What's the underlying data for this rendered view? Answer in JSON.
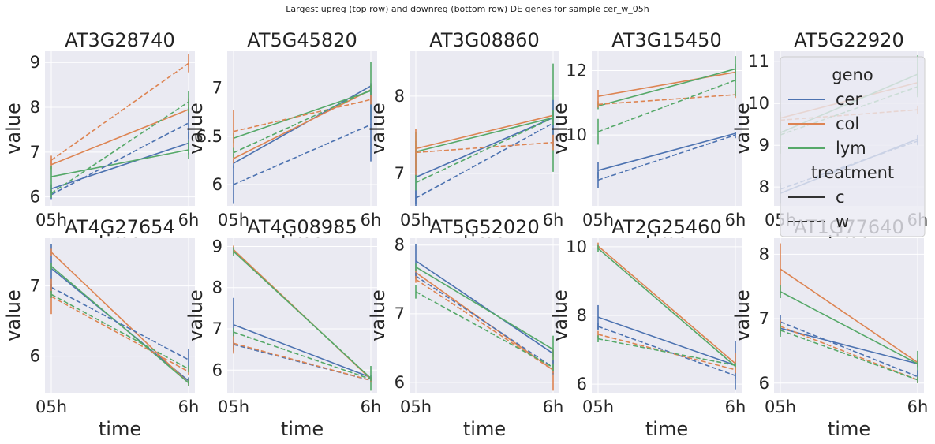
{
  "suptitle": "Largest upreg (top row) and downreg (bottom row) DE genes for sample cer_w_05h",
  "colors": {
    "cer": "#4c72b0",
    "col": "#dd8452",
    "lym": "#55a868",
    "background": "#eaeaf2",
    "grid": "#ffffff"
  },
  "legend": {
    "placement": "upper right of the top-right panel",
    "title_geno": "geno",
    "entries_geno": [
      {
        "label": "cer",
        "color": "#4c72b0"
      },
      {
        "label": "col",
        "color": "#dd8452"
      },
      {
        "label": "lym",
        "color": "#55a868"
      }
    ],
    "title_treatment": "treatment",
    "entries_treatment": [
      {
        "label": "c",
        "style": "solid"
      },
      {
        "label": "w",
        "style": "dashed"
      }
    ]
  },
  "chart_data": [
    {
      "type": "line",
      "title": "AT3G28740",
      "xlabel": "time",
      "ylabel": "value",
      "categories": [
        "05h",
        "6h"
      ],
      "ylim": [
        5.8,
        9.25
      ],
      "yticks": [
        6,
        7,
        8,
        9
      ],
      "grid": true,
      "series": [
        {
          "geno": "cer",
          "treatment": "c",
          "values": [
            6.18,
            7.2
          ],
          "err": [
            0.1,
            0.25
          ]
        },
        {
          "geno": "col",
          "treatment": "c",
          "values": [
            6.72,
            7.95
          ],
          "err": [
            0.1,
            0.25
          ]
        },
        {
          "geno": "lym",
          "treatment": "c",
          "values": [
            6.45,
            7.05
          ],
          "err": [
            0.25,
            0.2
          ]
        },
        {
          "geno": "cer",
          "treatment": "w",
          "values": [
            6.05,
            7.65
          ],
          "err": [
            0.1,
            0.35
          ]
        },
        {
          "geno": "col",
          "treatment": "w",
          "values": [
            6.82,
            8.98
          ],
          "err": [
            0.1,
            0.2
          ]
        },
        {
          "geno": "lym",
          "treatment": "w",
          "values": [
            6.08,
            8.12
          ],
          "err": [
            0.1,
            0.25
          ]
        }
      ]
    },
    {
      "type": "line",
      "title": "AT5G45820",
      "xlabel": "time",
      "ylabel": "value",
      "categories": [
        "05h",
        "6h"
      ],
      "ylim": [
        5.78,
        7.38
      ],
      "yticks": [
        6.0,
        6.5,
        7.0
      ],
      "grid": true,
      "series": [
        {
          "geno": "cer",
          "treatment": "c",
          "values": [
            6.22,
            7.02
          ],
          "err": [
            0.05,
            0.03
          ]
        },
        {
          "geno": "col",
          "treatment": "c",
          "values": [
            6.27,
            6.98
          ],
          "err": [
            0.05,
            0.05
          ]
        },
        {
          "geno": "lym",
          "treatment": "c",
          "values": [
            6.48,
            6.97
          ],
          "err": [
            0.05,
            0.3
          ]
        },
        {
          "geno": "cer",
          "treatment": "w",
          "values": [
            6.0,
            6.62
          ],
          "err": [
            0.2,
            0.38
          ]
        },
        {
          "geno": "col",
          "treatment": "w",
          "values": [
            6.55,
            6.88
          ],
          "err": [
            0.22,
            0.05
          ]
        },
        {
          "geno": "lym",
          "treatment": "w",
          "values": [
            6.33,
            6.98
          ],
          "err": [
            0.05,
            0.05
          ]
        }
      ]
    },
    {
      "type": "line",
      "title": "AT3G08860",
      "xlabel": "time",
      "ylabel": "value",
      "categories": [
        "05h",
        "6h"
      ],
      "ylim": [
        6.58,
        8.58
      ],
      "yticks": [
        7,
        8
      ],
      "grid": true,
      "series": [
        {
          "geno": "cer",
          "treatment": "c",
          "values": [
            6.95,
            7.72
          ],
          "err": [
            0.35,
            0.1
          ]
        },
        {
          "geno": "col",
          "treatment": "c",
          "values": [
            7.32,
            7.75
          ],
          "err": [
            0.1,
            0.1
          ]
        },
        {
          "geno": "lym",
          "treatment": "c",
          "values": [
            7.28,
            7.72
          ],
          "err": [
            0.25,
            0.7
          ]
        },
        {
          "geno": "cer",
          "treatment": "w",
          "values": [
            6.68,
            7.65
          ],
          "err": [
            0.1,
            0.3
          ]
        },
        {
          "geno": "col",
          "treatment": "w",
          "values": [
            7.27,
            7.4
          ],
          "err": [
            0.3,
            0.1
          ]
        },
        {
          "geno": "lym",
          "treatment": "w",
          "values": [
            6.88,
            7.72
          ],
          "err": [
            0.1,
            0.1
          ]
        }
      ]
    },
    {
      "type": "line",
      "title": "AT3G15450",
      "xlabel": "time",
      "ylabel": "value",
      "categories": [
        "05h",
        "6h"
      ],
      "ylim": [
        7.8,
        12.6
      ],
      "yticks": [
        10,
        12
      ],
      "grid": true,
      "series": [
        {
          "geno": "cer",
          "treatment": "c",
          "values": [
            8.9,
            10.05
          ],
          "err": [
            0.25,
            0.05
          ]
        },
        {
          "geno": "col",
          "treatment": "c",
          "values": [
            11.2,
            11.95
          ],
          "err": [
            0.2,
            0.1
          ]
        },
        {
          "geno": "lym",
          "treatment": "c",
          "values": [
            10.9,
            12.05
          ],
          "err": [
            0.1,
            0.4
          ]
        },
        {
          "geno": "cer",
          "treatment": "w",
          "values": [
            8.6,
            10.0
          ],
          "err": [
            0.25,
            0.1
          ]
        },
        {
          "geno": "col",
          "treatment": "w",
          "values": [
            10.95,
            11.25
          ],
          "err": [
            0.1,
            0.1
          ]
        },
        {
          "geno": "lym",
          "treatment": "w",
          "values": [
            10.1,
            11.7
          ],
          "err": [
            0.4,
            0.5
          ]
        }
      ]
    },
    {
      "type": "line",
      "title": "AT5G22920",
      "xlabel": "time",
      "ylabel": "value",
      "categories": [
        "05h",
        "6h"
      ],
      "ylim": [
        7.55,
        11.25
      ],
      "yticks": [
        8,
        9,
        10,
        11
      ],
      "grid": true,
      "series": [
        {
          "geno": "cer",
          "treatment": "c",
          "values": [
            7.85,
            9.15
          ],
          "err": [
            0.25,
            0.1
          ]
        },
        {
          "geno": "col",
          "treatment": "c",
          "values": [
            9.65,
            10.5
          ],
          "err": [
            0.15,
            0.3
          ]
        },
        {
          "geno": "lym",
          "treatment": "c",
          "values": [
            9.3,
            10.7
          ],
          "err": [
            0.5,
            0.45
          ]
        },
        {
          "geno": "cer",
          "treatment": "w",
          "values": [
            7.95,
            9.1
          ],
          "err": [
            0.1,
            0.1
          ]
        },
        {
          "geno": "col",
          "treatment": "w",
          "values": [
            9.6,
            9.85
          ],
          "err": [
            0.1,
            0.1
          ]
        },
        {
          "geno": "lym",
          "treatment": "w",
          "values": [
            9.25,
            10.4
          ],
          "err": [
            0.1,
            0.25
          ]
        }
      ]
    },
    {
      "type": "line",
      "title": "AT4G27654",
      "xlabel": "time",
      "ylabel": "value",
      "categories": [
        "05h",
        "6h"
      ],
      "ylim": [
        5.48,
        7.68
      ],
      "yticks": [
        6,
        7
      ],
      "grid": true,
      "series": [
        {
          "geno": "cer",
          "treatment": "c",
          "values": [
            7.25,
            5.65
          ],
          "err": [
            0.35,
            0.05
          ]
        },
        {
          "geno": "col",
          "treatment": "c",
          "values": [
            7.48,
            5.62
          ],
          "err": [
            0.05,
            0.05
          ]
        },
        {
          "geno": "lym",
          "treatment": "c",
          "values": [
            7.28,
            5.62
          ],
          "err": [
            0.05,
            0.05
          ]
        },
        {
          "geno": "cer",
          "treatment": "w",
          "values": [
            6.98,
            5.95
          ],
          "err": [
            0.05,
            0.15
          ]
        },
        {
          "geno": "col",
          "treatment": "w",
          "values": [
            6.85,
            5.78
          ],
          "err": [
            0.25,
            0.05
          ]
        },
        {
          "geno": "lym",
          "treatment": "w",
          "values": [
            6.88,
            5.82
          ],
          "err": [
            0.05,
            0.05
          ]
        }
      ]
    },
    {
      "type": "line",
      "title": "AT4G08985",
      "xlabel": "time",
      "ylabel": "value",
      "categories": [
        "05h",
        "6h"
      ],
      "ylim": [
        5.45,
        9.2
      ],
      "yticks": [
        6,
        7,
        8,
        9
      ],
      "grid": true,
      "series": [
        {
          "geno": "cer",
          "treatment": "c",
          "values": [
            7.1,
            5.82
          ],
          "err": [
            0.65,
            0.05
          ]
        },
        {
          "geno": "col",
          "treatment": "c",
          "values": [
            8.92,
            5.78
          ],
          "err": [
            0.1,
            0.05
          ]
        },
        {
          "geno": "lym",
          "treatment": "c",
          "values": [
            8.88,
            5.8
          ],
          "err": [
            0.1,
            0.3
          ]
        },
        {
          "geno": "cer",
          "treatment": "w",
          "values": [
            6.62,
            5.75
          ],
          "err": [
            0.1,
            0.05
          ]
        },
        {
          "geno": "col",
          "treatment": "w",
          "values": [
            6.65,
            5.75
          ],
          "err": [
            0.25,
            0.05
          ]
        },
        {
          "geno": "lym",
          "treatment": "w",
          "values": [
            6.92,
            5.78
          ],
          "err": [
            0.1,
            0.05
          ]
        }
      ]
    },
    {
      "type": "line",
      "title": "AT5G52020",
      "xlabel": "time",
      "ylabel": "value",
      "categories": [
        "05h",
        "6h"
      ],
      "ylim": [
        5.85,
        8.1
      ],
      "yticks": [
        6,
        7,
        8
      ],
      "grid": true,
      "series": [
        {
          "geno": "cer",
          "treatment": "c",
          "values": [
            7.77,
            6.42
          ],
          "err": [
            0.25,
            0.05
          ]
        },
        {
          "geno": "col",
          "treatment": "c",
          "values": [
            7.6,
            6.18
          ],
          "err": [
            0.05,
            0.3
          ]
        },
        {
          "geno": "lym",
          "treatment": "c",
          "values": [
            7.68,
            6.48
          ],
          "err": [
            0.05,
            0.2
          ]
        },
        {
          "geno": "cer",
          "treatment": "w",
          "values": [
            7.55,
            6.22
          ],
          "err": [
            0.05,
            0.1
          ]
        },
        {
          "geno": "col",
          "treatment": "w",
          "values": [
            7.5,
            6.18
          ],
          "err": [
            0.05,
            0.05
          ]
        },
        {
          "geno": "lym",
          "treatment": "w",
          "values": [
            7.32,
            6.22
          ],
          "err": [
            0.1,
            0.05
          ]
        }
      ]
    },
    {
      "type": "line",
      "title": "AT2G25460",
      "xlabel": "time",
      "ylabel": "value",
      "categories": [
        "05h",
        "6h"
      ],
      "ylim": [
        5.75,
        10.25
      ],
      "yticks": [
        6,
        8,
        10
      ],
      "grid": true,
      "series": [
        {
          "geno": "cer",
          "treatment": "c",
          "values": [
            7.95,
            6.55
          ],
          "err": [
            0.35,
            0.7
          ]
        },
        {
          "geno": "col",
          "treatment": "c",
          "values": [
            10.02,
            6.6
          ],
          "err": [
            0.1,
            0.3
          ]
        },
        {
          "geno": "lym",
          "treatment": "c",
          "values": [
            9.95,
            6.52
          ],
          "err": [
            0.1,
            0.1
          ]
        },
        {
          "geno": "cer",
          "treatment": "w",
          "values": [
            7.68,
            6.25
          ],
          "err": [
            0.1,
            0.1
          ]
        },
        {
          "geno": "col",
          "treatment": "w",
          "values": [
            7.45,
            6.42
          ],
          "err": [
            0.1,
            0.1
          ]
        },
        {
          "geno": "lym",
          "treatment": "w",
          "values": [
            7.32,
            6.55
          ],
          "err": [
            0.1,
            0.05
          ]
        }
      ]
    },
    {
      "type": "line",
      "title": "AT1G77640",
      "xlabel": "time",
      "ylabel": "value",
      "categories": [
        "05h",
        "6h"
      ],
      "ylim": [
        5.85,
        8.25
      ],
      "yticks": [
        6,
        7,
        8
      ],
      "grid": true,
      "series": [
        {
          "geno": "cer",
          "treatment": "c",
          "values": [
            6.85,
            6.3
          ],
          "err": [
            0.1,
            0.05
          ]
        },
        {
          "geno": "col",
          "treatment": "c",
          "values": [
            7.77,
            6.32
          ],
          "err": [
            0.4,
            0.05
          ]
        },
        {
          "geno": "lym",
          "treatment": "c",
          "values": [
            7.42,
            6.3
          ],
          "err": [
            0.1,
            0.2
          ]
        },
        {
          "geno": "cer",
          "treatment": "w",
          "values": [
            6.95,
            6.1
          ],
          "err": [
            0.1,
            0.1
          ]
        },
        {
          "geno": "col",
          "treatment": "w",
          "values": [
            6.88,
            6.05
          ],
          "err": [
            0.1,
            0.05
          ]
        },
        {
          "geno": "lym",
          "treatment": "w",
          "values": [
            6.82,
            6.05
          ],
          "err": [
            0.1,
            0.05
          ]
        }
      ]
    }
  ]
}
